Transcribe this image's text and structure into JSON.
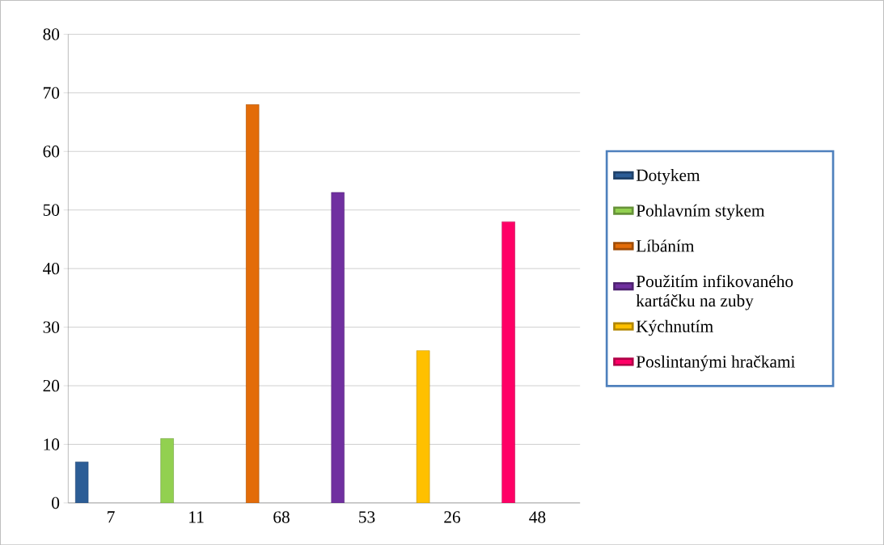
{
  "chart_data": {
    "type": "bar",
    "categories": [
      "7",
      "11",
      "68",
      "53",
      "26",
      "48"
    ],
    "series": [
      {
        "name": "Dotykem",
        "color": "#2c5d96",
        "values": [
          7,
          null,
          null,
          null,
          null,
          null
        ]
      },
      {
        "name": "Pohlavním stykem",
        "color": "#92d050",
        "values": [
          null,
          11,
          null,
          null,
          null,
          null
        ]
      },
      {
        "name": "Líbáním",
        "color": "#e36c09",
        "values": [
          null,
          null,
          68,
          null,
          null,
          null
        ]
      },
      {
        "name": "Použitím infikovaného kartáčku na zuby",
        "color": "#7030a0",
        "values": [
          null,
          null,
          null,
          53,
          null,
          null
        ]
      },
      {
        "name": "Kýchnutím",
        "color": "#ffc000",
        "values": [
          null,
          null,
          null,
          null,
          26,
          null
        ]
      },
      {
        "name": "Poslintanými hračkami",
        "color": "#ff0066",
        "values": [
          null,
          null,
          null,
          null,
          null,
          48
        ]
      }
    ],
    "ylim": [
      0,
      80
    ],
    "yticks": [
      0,
      10,
      20,
      30,
      40,
      50,
      60,
      70,
      80
    ],
    "grid": "y",
    "legend": "right"
  }
}
